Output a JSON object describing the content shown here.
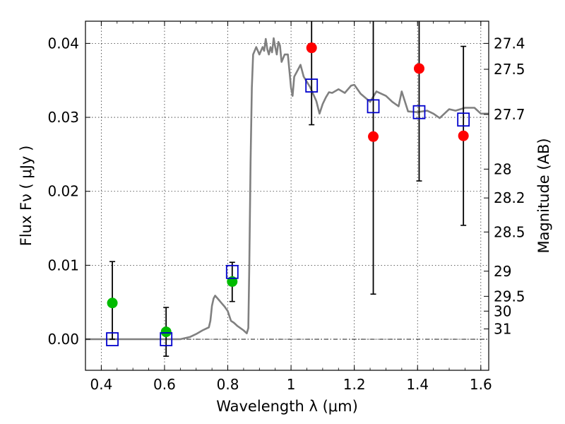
{
  "chart_data": {
    "type": "scatter",
    "xlabel": "Wavelength  λ (μm)",
    "ylabel": "Flux  Fν  ( μJy )",
    "y2label": "Magnitude (AB)",
    "xlim": [
      0.35,
      1.625
    ],
    "ylim": [
      -0.0042,
      0.043
    ],
    "grid": true,
    "x_ticks": [
      0.4,
      0.6,
      0.8,
      1.0,
      1.2,
      1.4,
      1.6
    ],
    "x_tick_labels": [
      "0.4",
      "0.6",
      "0.8",
      "1",
      "1.2",
      "1.4",
      "1.6"
    ],
    "y_ticks": [
      0.0,
      0.01,
      0.02,
      0.03,
      0.04
    ],
    "y_tick_labels": [
      "0.00",
      "0.01",
      "0.02",
      "0.03",
      "0.04"
    ],
    "mag_ticks": [
      {
        "label": "27.4",
        "flux": 0.04
      },
      {
        "label": "27.5",
        "flux": 0.0365
      },
      {
        "label": "27.7",
        "flux": 0.0304
      },
      {
        "label": "28",
        "flux": 0.023
      },
      {
        "label": "28.2",
        "flux": 0.0191
      },
      {
        "label": "28.5",
        "flux": 0.0145
      },
      {
        "label": "29",
        "flux": 0.0092
      },
      {
        "label": "29.5",
        "flux": 0.0058
      },
      {
        "label": "30",
        "flux": 0.0038
      },
      {
        "label": "31",
        "flux": 0.0014
      }
    ],
    "series": [
      {
        "name": "model SED",
        "kind": "line",
        "color": "#808080",
        "x": [
          0.35,
          0.6,
          0.65,
          0.68,
          0.7,
          0.72,
          0.735,
          0.74,
          0.745,
          0.75,
          0.755,
          0.76,
          0.77,
          0.78,
          0.79,
          0.8,
          0.81,
          0.82,
          0.83,
          0.84,
          0.85,
          0.86,
          0.865,
          0.868,
          0.872,
          0.876,
          0.88,
          0.885,
          0.89,
          0.9,
          0.91,
          0.915,
          0.92,
          0.925,
          0.93,
          0.935,
          0.94,
          0.945,
          0.95,
          0.955,
          0.96,
          0.965,
          0.97,
          0.98,
          0.99,
          1.0,
          1.005,
          1.01,
          1.02,
          1.03,
          1.04,
          1.06,
          1.08,
          1.09,
          1.1,
          1.11,
          1.12,
          1.13,
          1.15,
          1.17,
          1.19,
          1.2,
          1.22,
          1.25,
          1.27,
          1.3,
          1.32,
          1.34,
          1.35,
          1.37,
          1.4,
          1.43,
          1.45,
          1.47,
          1.5,
          1.52,
          1.55,
          1.58,
          1.6,
          1.625
        ],
        "y": [
          0.0,
          0.0,
          0.0,
          0.0003,
          0.0007,
          0.0012,
          0.0015,
          0.0016,
          0.0025,
          0.0045,
          0.0055,
          0.0059,
          0.0054,
          0.0049,
          0.0044,
          0.0038,
          0.0025,
          0.0022,
          0.0018,
          0.0015,
          0.0012,
          0.0008,
          0.0015,
          0.01,
          0.024,
          0.034,
          0.0385,
          0.039,
          0.0395,
          0.0385,
          0.0395,
          0.039,
          0.0406,
          0.0392,
          0.0385,
          0.0395,
          0.0388,
          0.0407,
          0.0395,
          0.0385,
          0.0402,
          0.0397,
          0.0375,
          0.0385,
          0.0385,
          0.034,
          0.0329,
          0.0355,
          0.0363,
          0.0371,
          0.0355,
          0.0341,
          0.0322,
          0.0305,
          0.0318,
          0.0327,
          0.0334,
          0.0333,
          0.0338,
          0.0333,
          0.0343,
          0.0344,
          0.0332,
          0.0321,
          0.0335,
          0.0329,
          0.0321,
          0.0315,
          0.0335,
          0.0308,
          0.0307,
          0.0309,
          0.0305,
          0.0299,
          0.0311,
          0.0309,
          0.0313,
          0.0313,
          0.0305,
          0.0305
        ]
      },
      {
        "name": "green detections",
        "kind": "points",
        "color": "#00bb00",
        "x": [
          0.435,
          0.605,
          0.814
        ],
        "y": [
          0.0049,
          0.001,
          0.0078
        ]
      },
      {
        "name": "red detections",
        "kind": "points",
        "color": "#ff0000",
        "x": [
          1.065,
          1.26,
          1.405,
          1.545
        ],
        "y": [
          0.0394,
          0.0274,
          0.0366,
          0.0275
        ]
      },
      {
        "name": "model photometry",
        "kind": "squares",
        "color": "#0000cc",
        "x": [
          0.435,
          0.605,
          0.814,
          1.065,
          1.26,
          1.405,
          1.545
        ],
        "y": [
          0.0,
          0.0,
          0.0091,
          0.0343,
          0.0315,
          0.0307,
          0.0297
        ]
      }
    ],
    "error_bars": [
      {
        "x": 0.435,
        "low": 0.0,
        "high": 0.0105
      },
      {
        "x": 0.605,
        "low": -0.0023,
        "high": 0.0043
      },
      {
        "x": 0.814,
        "low": 0.0051,
        "high": 0.0104
      },
      {
        "x": 1.065,
        "low": 0.029,
        "high": 0.043
      },
      {
        "x": 1.26,
        "low": 0.0061,
        "high": 0.043
      },
      {
        "x": 1.405,
        "low": 0.0214,
        "high": 0.043
      },
      {
        "x": 1.545,
        "low": 0.0154,
        "high": 0.0396
      }
    ]
  }
}
